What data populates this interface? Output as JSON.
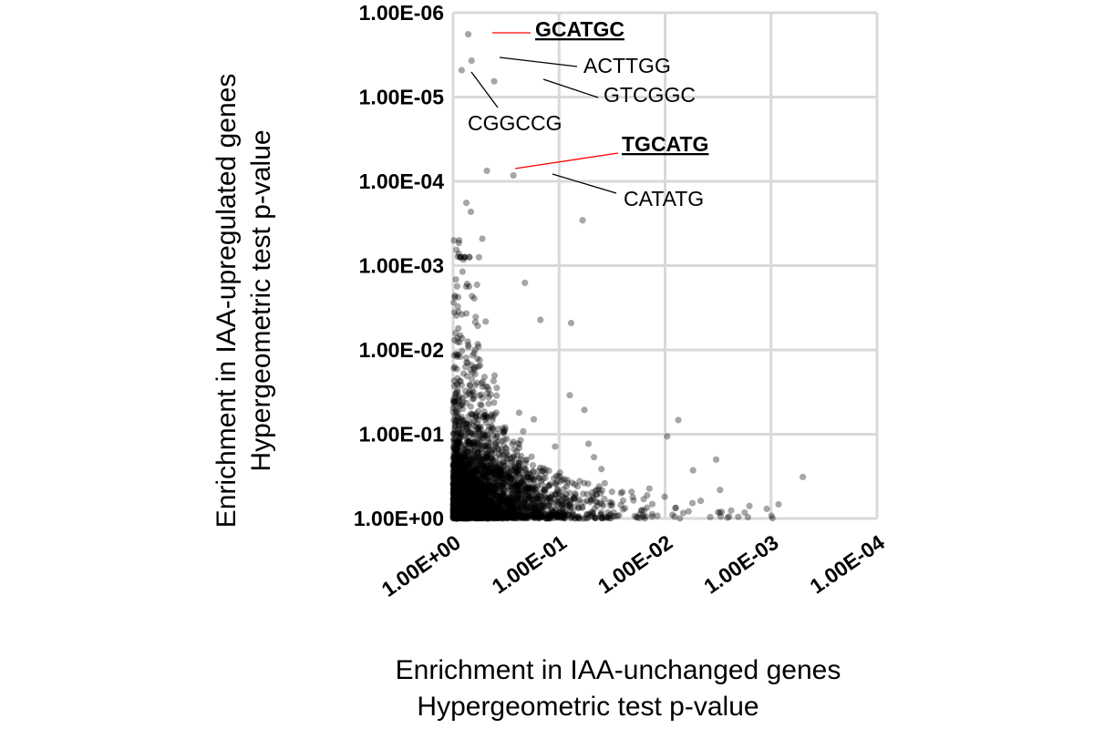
{
  "chart_data": {
    "type": "scatter",
    "title": "",
    "xlabel": [
      "Enrichment in IAA-unchanged genes",
      "Hypergeometric test p-value"
    ],
    "ylabel": [
      "Enrichment in IAA-upregulated genes",
      "Hypergeometric test p-value"
    ],
    "x_scale": "log-reversed",
    "y_scale": "log-reversed",
    "xlim": [
      1,
      0.0001
    ],
    "ylim": [
      1,
      1e-06
    ],
    "x_ticks": [
      "1.00E+00",
      "1.00E-01",
      "1.00E-02",
      "1.00E-03",
      "1.00E-04"
    ],
    "y_ticks": [
      "1.00E+00",
      "1.00E-01",
      "1.00E-02",
      "1.00E-03",
      "1.00E-04",
      "1.00E-05",
      "1.00E-06"
    ],
    "grid": true,
    "point_color": "#000000",
    "highlight_line_color": "#ff0000",
    "normal_line_color": "#000000",
    "annotations": [
      {
        "label": "GCATGC",
        "x": 0.72,
        "y": 1.8e-06,
        "highlight": true
      },
      {
        "label": "ACTTGG",
        "x": 0.67,
        "y": 3.7e-06,
        "highlight": false
      },
      {
        "label": "CGGCCG",
        "x": 0.83,
        "y": 4.8e-06,
        "highlight": false
      },
      {
        "label": "GTCGGC",
        "x": 0.41,
        "y": 6.5e-06,
        "highlight": false
      },
      {
        "label": "TGCATG",
        "x": 0.48,
        "y": 7.5e-05,
        "highlight": true
      },
      {
        "label": "CATATG",
        "x": 0.27,
        "y": 8.5e-05,
        "highlight": false
      }
    ],
    "notable_points": [
      {
        "x": 0.06,
        "y": 0.00029
      },
      {
        "x": 0.75,
        "y": 0.00018
      },
      {
        "x": 0.68,
        "y": 0.00023
      },
      {
        "x": 0.53,
        "y": 0.00048
      },
      {
        "x": 0.93,
        "y": 0.00065
      },
      {
        "x": 0.21,
        "y": 0.0016
      },
      {
        "x": 0.15,
        "y": 0.0044
      },
      {
        "x": 0.077,
        "y": 0.0048
      },
      {
        "x": 0.0075,
        "y": 0.068
      },
      {
        "x": 0.0033,
        "y": 0.2
      },
      {
        "x": 0.0016,
        "y": 0.71
      },
      {
        "x": 0.00085,
        "y": 0.68
      }
    ],
    "distribution": {
      "description_free": true,
      "dense_x_range": [
        1,
        0.1
      ],
      "dense_y_range": [
        1,
        0.1
      ],
      "sparse_tail_x_min": 0.001,
      "sparse_tail_y_min": 0.0002,
      "point_count": 3200
    }
  }
}
